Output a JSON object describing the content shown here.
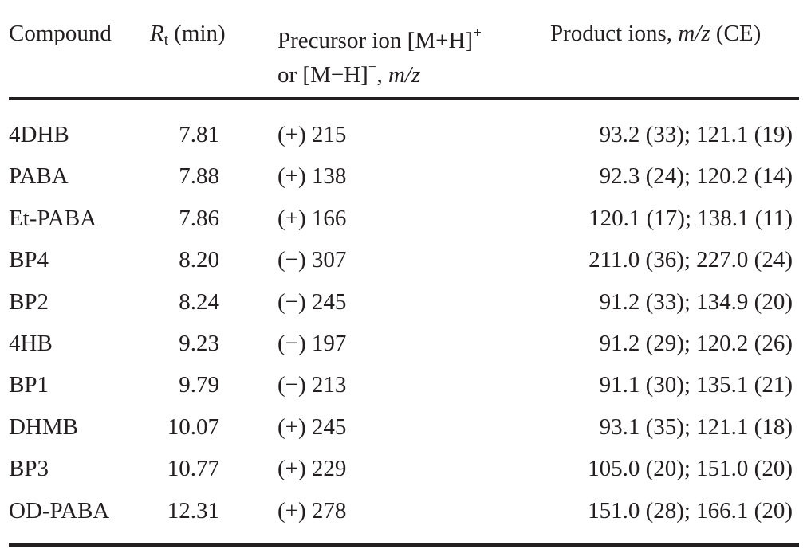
{
  "header": {
    "compound": "Compound",
    "rt_main": "R",
    "rt_sub": "t",
    "rt_unit": " (min)",
    "precursor_line1": "Precursor ion [M+H]",
    "precursor_sup1": "+",
    "precursor_line2a": "or [M−H]",
    "precursor_sup2": "−",
    "precursor_line2b": ", ",
    "precursor_mz": "m/z",
    "product_label": "Product ions, ",
    "product_mz": "m/z",
    "product_ce": " (CE)"
  },
  "rows": [
    {
      "compound": "4DHB",
      "rt": "7.81",
      "precursor": "(+) 215",
      "product": "93.2 (33); 121.1 (19)"
    },
    {
      "compound": "PABA",
      "rt": "7.88",
      "precursor": "(+) 138",
      "product": "92.3 (24); 120.2 (14)"
    },
    {
      "compound": "Et-PABA",
      "rt": "7.86",
      "precursor": "(+) 166",
      "product": "120.1 (17); 138.1 (11)"
    },
    {
      "compound": "BP4",
      "rt": "8.20",
      "precursor": "(−) 307",
      "product": "211.0 (36); 227.0 (24)"
    },
    {
      "compound": "BP2",
      "rt": "8.24",
      "precursor": "(−) 245",
      "product": "91.2 (33); 134.9 (20)"
    },
    {
      "compound": "4HB",
      "rt": "9.23",
      "precursor": "(−) 197",
      "product": "91.2 (29); 120.2 (26)"
    },
    {
      "compound": "BP1",
      "rt": "9.79",
      "precursor": "(−) 213",
      "product": "91.1 (30); 135.1 (21)"
    },
    {
      "compound": "DHMB",
      "rt": "10.07",
      "precursor": "(+) 245",
      "product": "93.1 (35); 121.1 (18)"
    },
    {
      "compound": "BP3",
      "rt": "10.77",
      "precursor": "(+) 229",
      "product": "105.0 (20); 151.0 (20)"
    },
    {
      "compound": "OD-PABA",
      "rt": "12.31",
      "precursor": "(+) 278",
      "product": "151.0 (28); 166.1 (20)"
    }
  ]
}
